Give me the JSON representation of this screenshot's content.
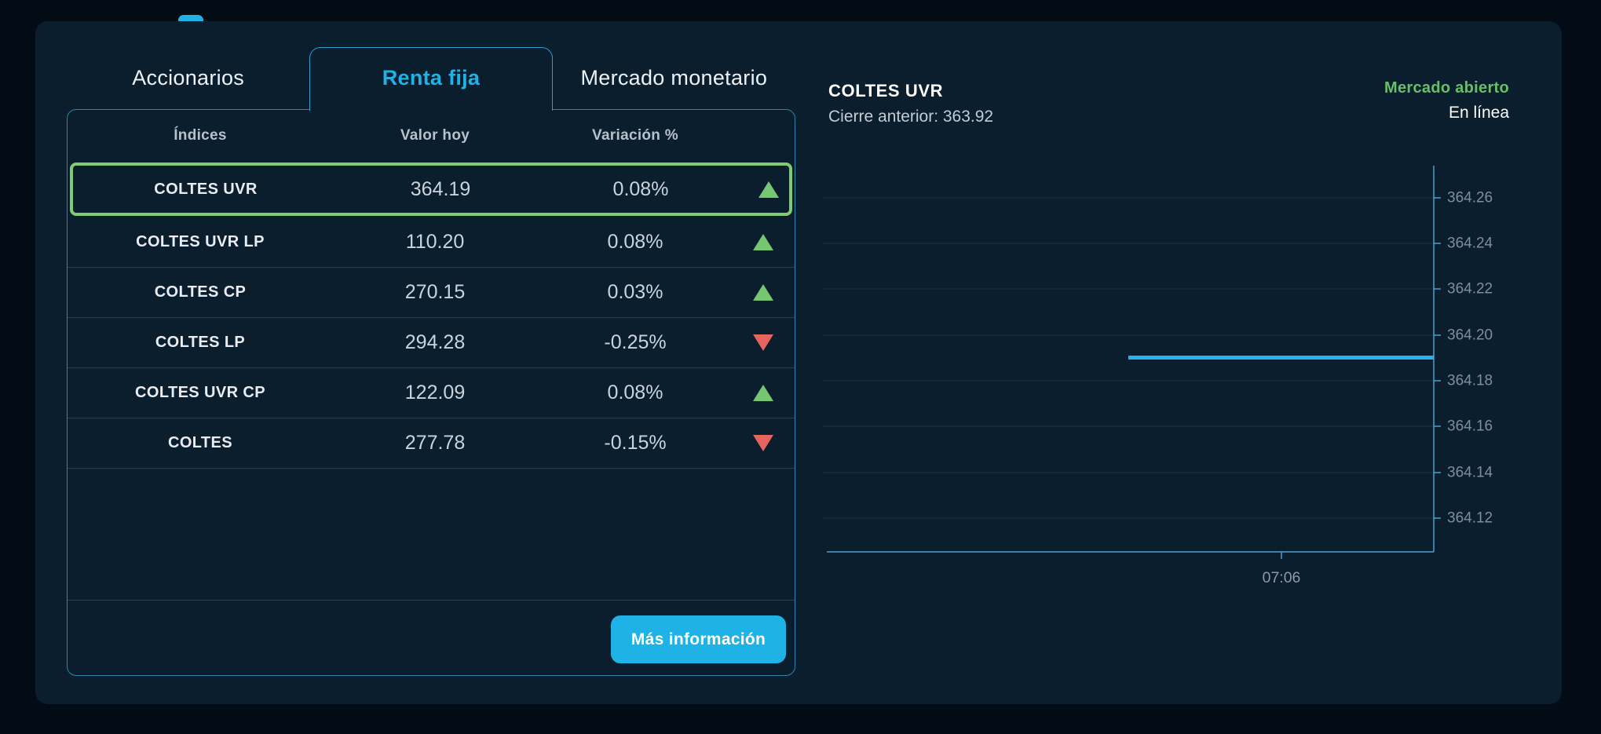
{
  "tabs": {
    "accionarios": "Accionarios",
    "renta_fija": "Renta fija",
    "mercado_monetario": "Mercado monetario"
  },
  "table": {
    "headers": {
      "indices": "Índices",
      "valor_hoy": "Valor hoy",
      "variacion": "Variación %"
    },
    "rows": [
      {
        "name": "COLTES UVR",
        "value": "364.19",
        "change": "0.08%",
        "direction": "up",
        "selected": true
      },
      {
        "name": "COLTES UVR LP",
        "value": "110.20",
        "change": "0.08%",
        "direction": "up"
      },
      {
        "name": "COLTES CP",
        "value": "270.15",
        "change": "0.03%",
        "direction": "up"
      },
      {
        "name": "COLTES LP",
        "value": "294.28",
        "change": "-0.25%",
        "direction": "down"
      },
      {
        "name": "COLTES UVR CP",
        "value": "122.09",
        "change": "0.08%",
        "direction": "up"
      },
      {
        "name": "COLTES",
        "value": "277.78",
        "change": "-0.15%",
        "direction": "down"
      }
    ],
    "more_info_label": "Más información"
  },
  "detail": {
    "title": "COLTES UVR",
    "prev_close": "Cierre anterior: 363.92",
    "market_status": "Mercado abierto",
    "connection": "En línea"
  },
  "chart_data": {
    "type": "line",
    "title": "COLTES UVR",
    "prev_close": 363.92,
    "ylim": [
      364.105,
      364.274
    ],
    "yticks": [
      "364.26",
      "364.24",
      "364.22",
      "364.20",
      "364.18",
      "364.16",
      "364.14",
      "364.12"
    ],
    "xticks": [
      "07:06"
    ],
    "grid": true,
    "legend": "none",
    "series": [
      {
        "name": "COLTES UVR",
        "value": 364.19,
        "x_start_frac": 0.5,
        "x_end_frac": 1.0,
        "color": "#29b2e8"
      }
    ]
  },
  "colors": {
    "accent": "#1fb2e6",
    "positive": "#76c771",
    "negative": "#e4665f",
    "selected": "#7fcb72",
    "statusgreen": "#68bf6a",
    "axis": "#4a9fd0"
  }
}
